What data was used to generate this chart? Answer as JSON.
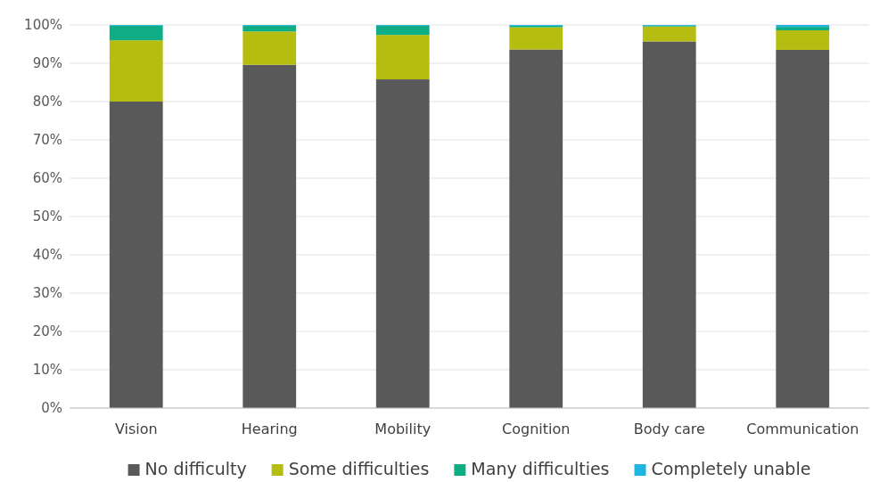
{
  "chart_data": {
    "type": "bar",
    "stacked": true,
    "categories": [
      "Vision",
      "Hearing",
      "Mobility",
      "Cognition",
      "Body care",
      "Communication"
    ],
    "series": [
      {
        "name": "No difficulty",
        "color": "#595959",
        "values": [
          80.0,
          89.6,
          85.8,
          93.6,
          95.7,
          93.5
        ]
      },
      {
        "name": "Some difficulties",
        "color": "#b5bd10",
        "values": [
          16.0,
          8.7,
          11.6,
          5.8,
          3.9,
          5.1
        ]
      },
      {
        "name": "Many difficulties",
        "color": "#0fad85",
        "values": [
          3.8,
          1.5,
          2.4,
          0.4,
          0.2,
          0.9
        ]
      },
      {
        "name": "Completely unable",
        "color": "#1fb5e0",
        "values": [
          0.2,
          0.2,
          0.2,
          0.2,
          0.2,
          0.5
        ]
      }
    ],
    "ylim": [
      0,
      100
    ],
    "yticks": [
      {
        "value": 0,
        "label": "0%"
      },
      {
        "value": 10,
        "label": "10%"
      },
      {
        "value": 20,
        "label": "20%"
      },
      {
        "value": 30,
        "label": "30%"
      },
      {
        "value": 40,
        "label": "40%"
      },
      {
        "value": 50,
        "label": "50%"
      },
      {
        "value": 60,
        "label": "60%"
      },
      {
        "value": 70,
        "label": "70%"
      },
      {
        "value": 80,
        "label": "80%"
      },
      {
        "value": 90,
        "label": "90%"
      },
      {
        "value": 100,
        "label": "100%"
      }
    ],
    "grid": "y",
    "legend": "bottom"
  }
}
